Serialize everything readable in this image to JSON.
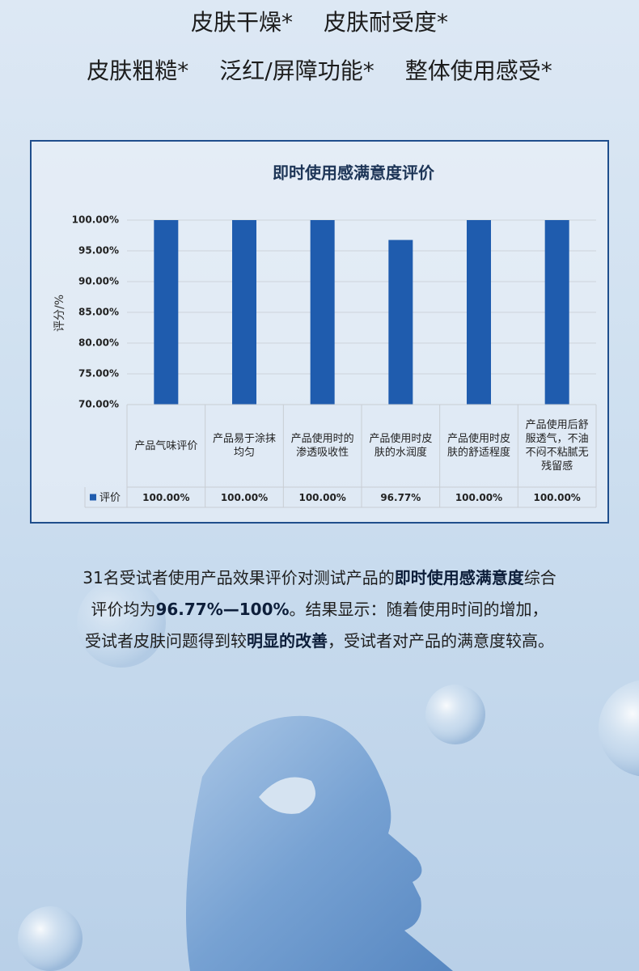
{
  "header": {
    "line1": [
      "皮肤干燥*",
      "皮肤耐受度*"
    ],
    "line2": [
      "皮肤粗糙*",
      "泛红/屏障功能*",
      "整体使用感受*"
    ]
  },
  "chart_data": {
    "type": "bar",
    "title": "即时使用感满意度评价",
    "y_label": "评分/%",
    "categories": [
      "产品气味评价",
      "产品易于涂抹均匀",
      "产品使用时的渗透吸收性",
      "产品使用时皮肤的水润度",
      "产品使用时皮肤的舒适程度",
      "产品使用后舒服透气，不油不闷不粘腻无残留感"
    ],
    "series": [
      {
        "name": "评价",
        "color": "#1f5cae",
        "values": [
          100,
          100,
          100,
          96.77,
          100,
          100
        ],
        "value_labels": [
          "100.00%",
          "100.00%",
          "100.00%",
          "96.77%",
          "100.00%",
          "100.00%"
        ]
      }
    ],
    "ylim": [
      70,
      100
    ],
    "yticks": [
      {
        "value": 70,
        "label": "70.00%"
      },
      {
        "value": 75,
        "label": "75.00%"
      },
      {
        "value": 80,
        "label": "80.00%"
      },
      {
        "value": 85,
        "label": "85.00%"
      },
      {
        "value": 90,
        "label": "90.00%"
      },
      {
        "value": 95,
        "label": "95.00%"
      },
      {
        "value": 100,
        "label": "100.00%"
      }
    ],
    "grid": true
  },
  "paragraph": [
    [
      {
        "text": "31名受试者使用产品效果评价对测试产品的",
        "bold": false
      },
      {
        "text": "即时使用感满意度",
        "bold": true
      },
      {
        "text": "综合",
        "bold": false
      }
    ],
    [
      {
        "text": "评价均为",
        "bold": false
      },
      {
        "text": "96.77%—100%",
        "bold": true
      },
      {
        "text": "。结果显示：随着使用时间的增加，",
        "bold": false
      }
    ],
    [
      {
        "text": "受试者皮肤问题得到较",
        "bold": false
      },
      {
        "text": "明显的改善",
        "bold": true
      },
      {
        "text": "，受试者对产品的满意度较高。",
        "bold": false
      }
    ]
  ]
}
